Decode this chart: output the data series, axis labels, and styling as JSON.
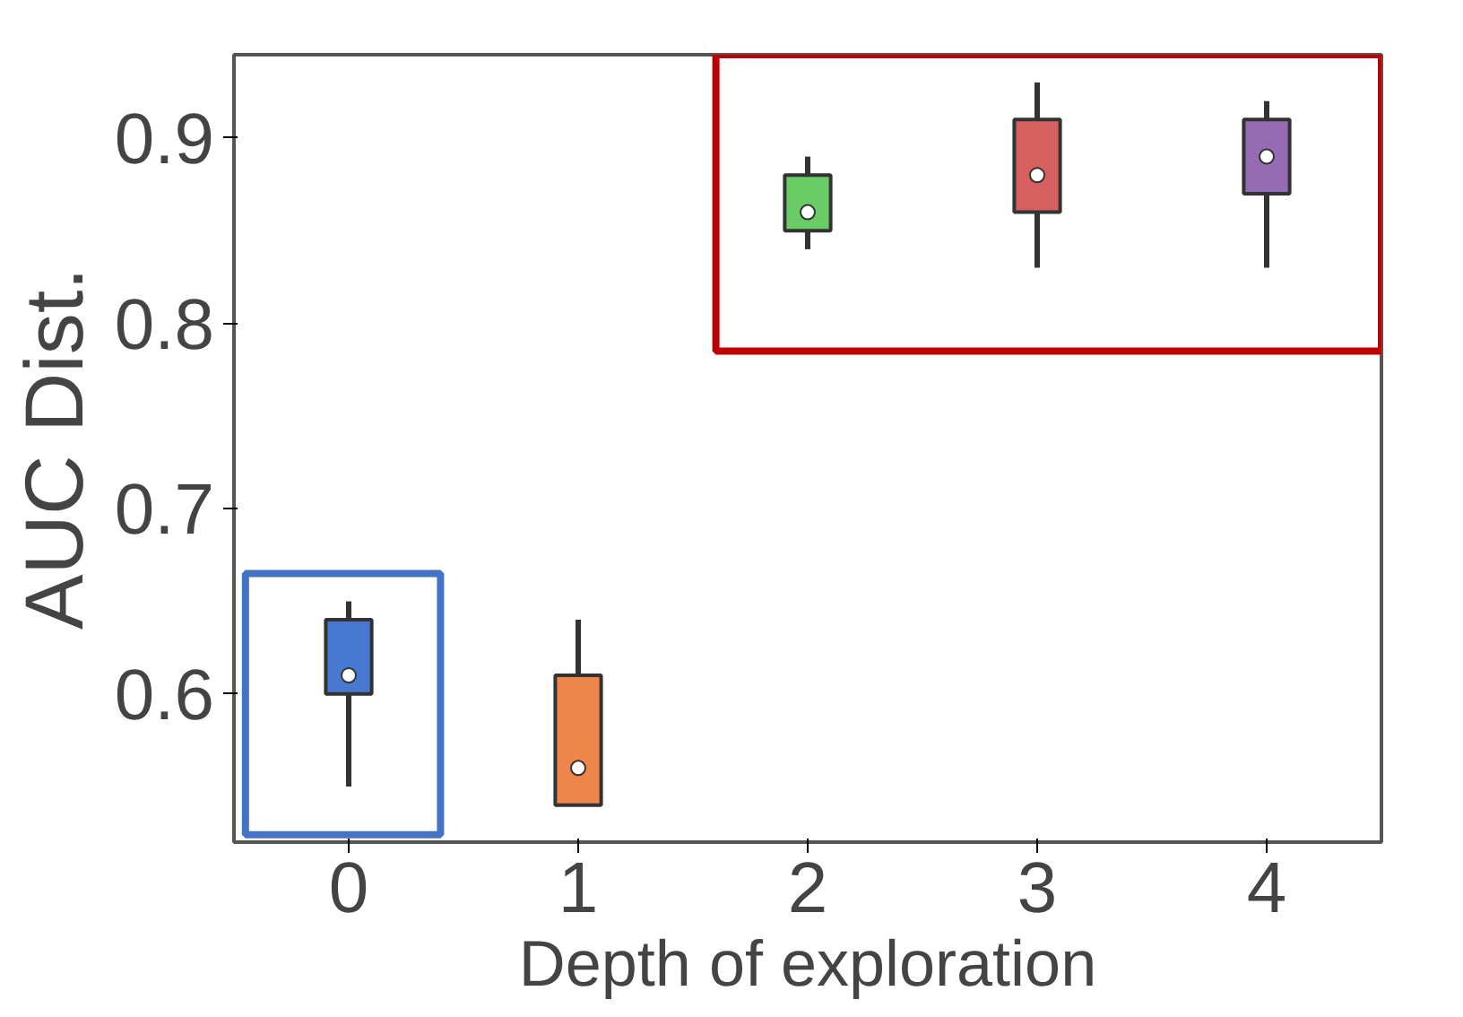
{
  "chart_data": {
    "type": "box",
    "xlabel": "Depth of exploration",
    "ylabel": "AUC Dist.",
    "categories": [
      "0",
      "1",
      "2",
      "3",
      "4"
    ],
    "colors": [
      "#4878d0",
      "#ee854a",
      "#6acc64",
      "#d65f5f",
      "#956cb4"
    ],
    "boxes": [
      {
        "low": 0.55,
        "q1": 0.6,
        "median": 0.61,
        "q3": 0.64,
        "high": 0.65
      },
      {
        "low": 0.54,
        "q1": 0.54,
        "median": 0.56,
        "q3": 0.61,
        "high": 0.64
      },
      {
        "low": 0.84,
        "q1": 0.85,
        "median": 0.86,
        "q3": 0.88,
        "high": 0.89
      },
      {
        "low": 0.83,
        "q1": 0.86,
        "median": 0.88,
        "q3": 0.91,
        "high": 0.93
      },
      {
        "low": 0.83,
        "q1": 0.87,
        "median": 0.89,
        "q3": 0.91,
        "high": 0.92
      }
    ],
    "ylim": [
      0.52,
      0.945
    ],
    "yticks": [
      0.6,
      0.7,
      0.8,
      0.9
    ],
    "grid": false
  }
}
